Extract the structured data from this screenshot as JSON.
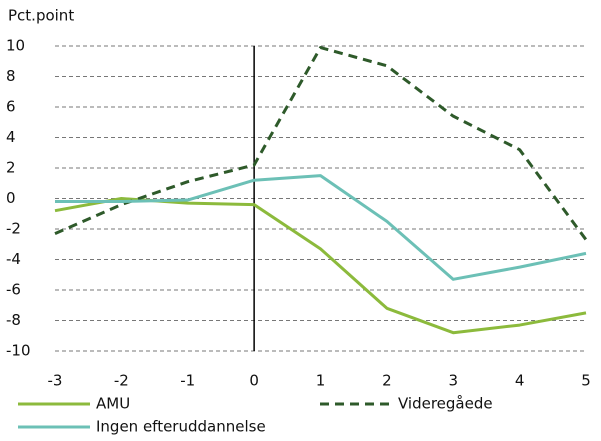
{
  "chart_data": {
    "type": "line",
    "y_label": "Pct.point",
    "x": [
      -3,
      -2,
      -1,
      0,
      1,
      2,
      3,
      4,
      5
    ],
    "series": [
      {
        "name": "AMU",
        "color": "#8cba3c",
        "dash": false,
        "values": [
          -0.8,
          0,
          -0.3,
          -0.4,
          -3.3,
          -7.2,
          -8.8,
          -8.3,
          -7.5
        ]
      },
      {
        "name": "Videregåede",
        "color": "#2e5a2a",
        "dash": true,
        "values": [
          -2.3,
          -0.4,
          1.1,
          2.2,
          9.9,
          8.7,
          5.4,
          3.2,
          -2.7
        ]
      },
      {
        "name": "Ingen efteruddannelse",
        "color": "#6cc0b6",
        "dash": false,
        "values": [
          -0.2,
          -0.2,
          -0.1,
          1.2,
          1.5,
          -1.5,
          -5.3,
          -4.5,
          -3.6
        ]
      }
    ],
    "xlim": [
      -3,
      5
    ],
    "xticks": [
      -3,
      -2,
      -1,
      0,
      1,
      2,
      3,
      4,
      5
    ],
    "ylim": [
      -10,
      10
    ],
    "yticks": [
      -10,
      -8,
      -6,
      -4,
      -2,
      0,
      2,
      4,
      6,
      8,
      10
    ],
    "grid": true,
    "legend": "bottom"
  }
}
